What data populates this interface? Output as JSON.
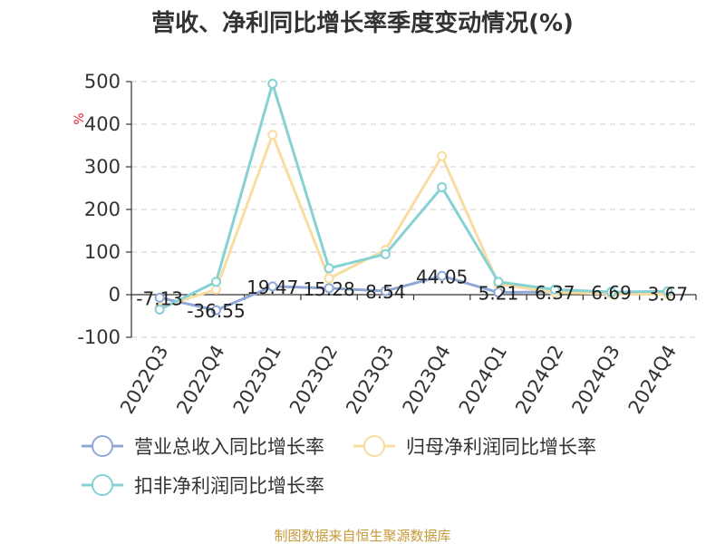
{
  "title": "营收、净利同比增长率季度变动情况(%)",
  "source": "制图数据来自恒生聚源数据库",
  "chart_data": {
    "type": "line",
    "ylabel": "%",
    "ylim": [
      -100,
      500
    ],
    "yticks": [
      -100,
      0,
      100,
      200,
      300,
      400,
      500
    ],
    "grid": true,
    "legend_position": "bottom-left",
    "categories": [
      "2022Q3",
      "2022Q4",
      "2023Q1",
      "2023Q2",
      "2023Q3",
      "2023Q4",
      "2024Q1",
      "2024Q2",
      "2024Q3",
      "2024Q4"
    ],
    "series": [
      {
        "name": "营业总收入同比增长率",
        "color": "#8fa8d6",
        "values": [
          -7.13,
          -36.55,
          19.47,
          15.28,
          8.54,
          44.05,
          5.21,
          6.37,
          6.69,
          3.67
        ],
        "labels": [
          "-7.13",
          "-36.55",
          "19.47",
          "15.28",
          "8.54",
          "44.05",
          "5.21",
          "6.37",
          "6.69",
          "3.67"
        ]
      },
      {
        "name": "归母净利润同比增长率",
        "color": "#f8dca0",
        "values": [
          -30,
          12,
          375,
          38,
          105,
          325,
          25,
          5,
          2,
          1
        ]
      },
      {
        "name": "扣非净利润同比增长率",
        "color": "#86d1d4",
        "values": [
          -35,
          30,
          495,
          62,
          95,
          252,
          30,
          12,
          6,
          8
        ]
      }
    ]
  }
}
